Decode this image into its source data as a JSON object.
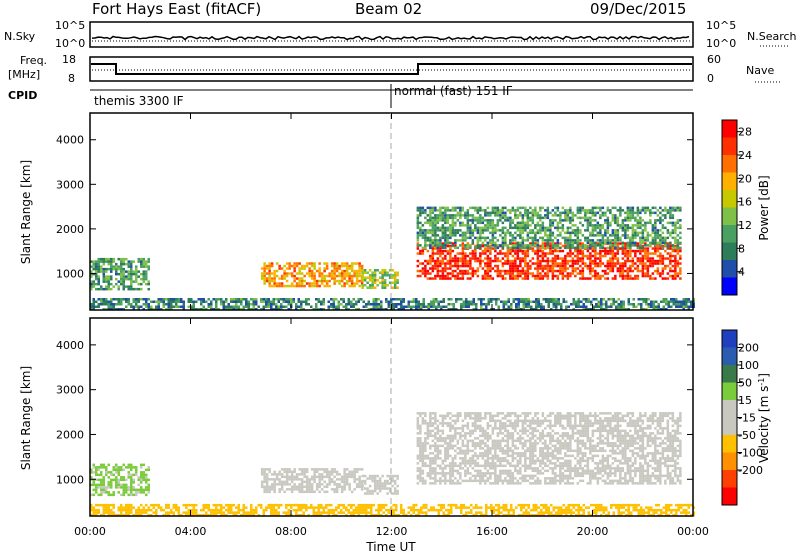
{
  "header": {
    "title": "Fort Hays East (fitACF)",
    "beam": "Beam 02",
    "date": "09/Dec/2015"
  },
  "noise_panel": {
    "left_label": "N.Sky",
    "right_label": "N.Search",
    "tick_top": "10^5",
    "tick_bottom": "10^0",
    "right_tick_top": "10^5",
    "right_tick_bottom": "10^0"
  },
  "freq_panel": {
    "left_label_line1": "Freq.",
    "left_label_line2": "[MHz]",
    "right_label": "Nave",
    "left_ticks": [
      "18",
      "8"
    ],
    "right_ticks": [
      "60",
      "0"
    ]
  },
  "cpid": {
    "label": "CPID",
    "segments": [
      {
        "name": "themis 3300 IF",
        "start_hour": 0
      },
      {
        "name": "normal (fast) 151 IF",
        "start_hour": 12
      }
    ]
  },
  "colors": {
    "power_scale": [
      "#0000ff",
      "#1f4fa8",
      "#2e7d5a",
      "#4aa060",
      "#7fc048",
      "#c6c800",
      "#ffb000",
      "#ff7000",
      "#ff3000",
      "#ff0000"
    ],
    "velocity_scale": [
      "#1f3fbf",
      "#2a5cb0",
      "#3a7a4a",
      "#7acc3a",
      "#c8c8c0",
      "#c8c8c0",
      "#ffc000",
      "#ff9000",
      "#ff4000",
      "#ff0000"
    ],
    "dashed_line": "#aaaaaa"
  },
  "chart_data": [
    {
      "type": "heatmap",
      "name": "power",
      "title": "",
      "xlabel": "",
      "ylabel": "Slant Range [km]",
      "xlim": [
        0,
        24
      ],
      "ylim": [
        180,
        4600
      ],
      "yticks": [
        1000,
        2000,
        3000,
        4000
      ],
      "colorbar": {
        "label": "Power [dB]",
        "ticks": [
          4,
          8,
          12,
          16,
          20,
          24,
          28
        ],
        "range": [
          0,
          30
        ]
      },
      "regions": [
        {
          "t_start": 0.0,
          "t_end": 2.3,
          "r_low": 650,
          "r_high": 1350,
          "value": 10
        },
        {
          "t_start": 6.8,
          "t_end": 10.8,
          "r_low": 700,
          "r_high": 1250,
          "value": 20
        },
        {
          "t_start": 10.8,
          "t_end": 12.2,
          "r_low": 700,
          "r_high": 1100,
          "value": 14
        },
        {
          "t_start": 13.0,
          "t_end": 23.5,
          "r_low": 900,
          "r_high": 1700,
          "value": 26
        },
        {
          "t_start": 13.0,
          "t_end": 23.5,
          "r_low": 1600,
          "r_high": 2500,
          "value": 10
        },
        {
          "t_start": 0.0,
          "t_end": 24.0,
          "r_low": 200,
          "r_high": 450,
          "value": 8
        }
      ]
    },
    {
      "type": "heatmap",
      "name": "velocity",
      "title": "",
      "xlabel": "Time UT",
      "ylabel": "Slant Range [km]",
      "xlim": [
        0,
        24
      ],
      "ylim": [
        180,
        4600
      ],
      "yticks": [
        1000,
        2000,
        3000,
        4000
      ],
      "xticks": [
        "00:00",
        "04:00",
        "08:00",
        "12:00",
        "16:00",
        "20:00",
        "00:00"
      ],
      "colorbar": {
        "label": "Velocity [m s^-1]",
        "ticks": [
          200,
          100,
          50,
          15,
          -15,
          -50,
          -100,
          -200
        ]
      },
      "regions": [
        {
          "t_start": 0.0,
          "t_end": 2.3,
          "r_low": 650,
          "r_high": 1350,
          "value": 20
        },
        {
          "t_start": 6.8,
          "t_end": 10.8,
          "r_low": 700,
          "r_high": 1250,
          "value": 0
        },
        {
          "t_start": 10.8,
          "t_end": 12.2,
          "r_low": 700,
          "r_high": 1100,
          "value": 0
        },
        {
          "t_start": 13.0,
          "t_end": 23.5,
          "r_low": 900,
          "r_high": 2500,
          "value": 0
        },
        {
          "t_start": 0.0,
          "t_end": 24.0,
          "r_low": 200,
          "r_high": 450,
          "value": -30
        }
      ]
    }
  ]
}
